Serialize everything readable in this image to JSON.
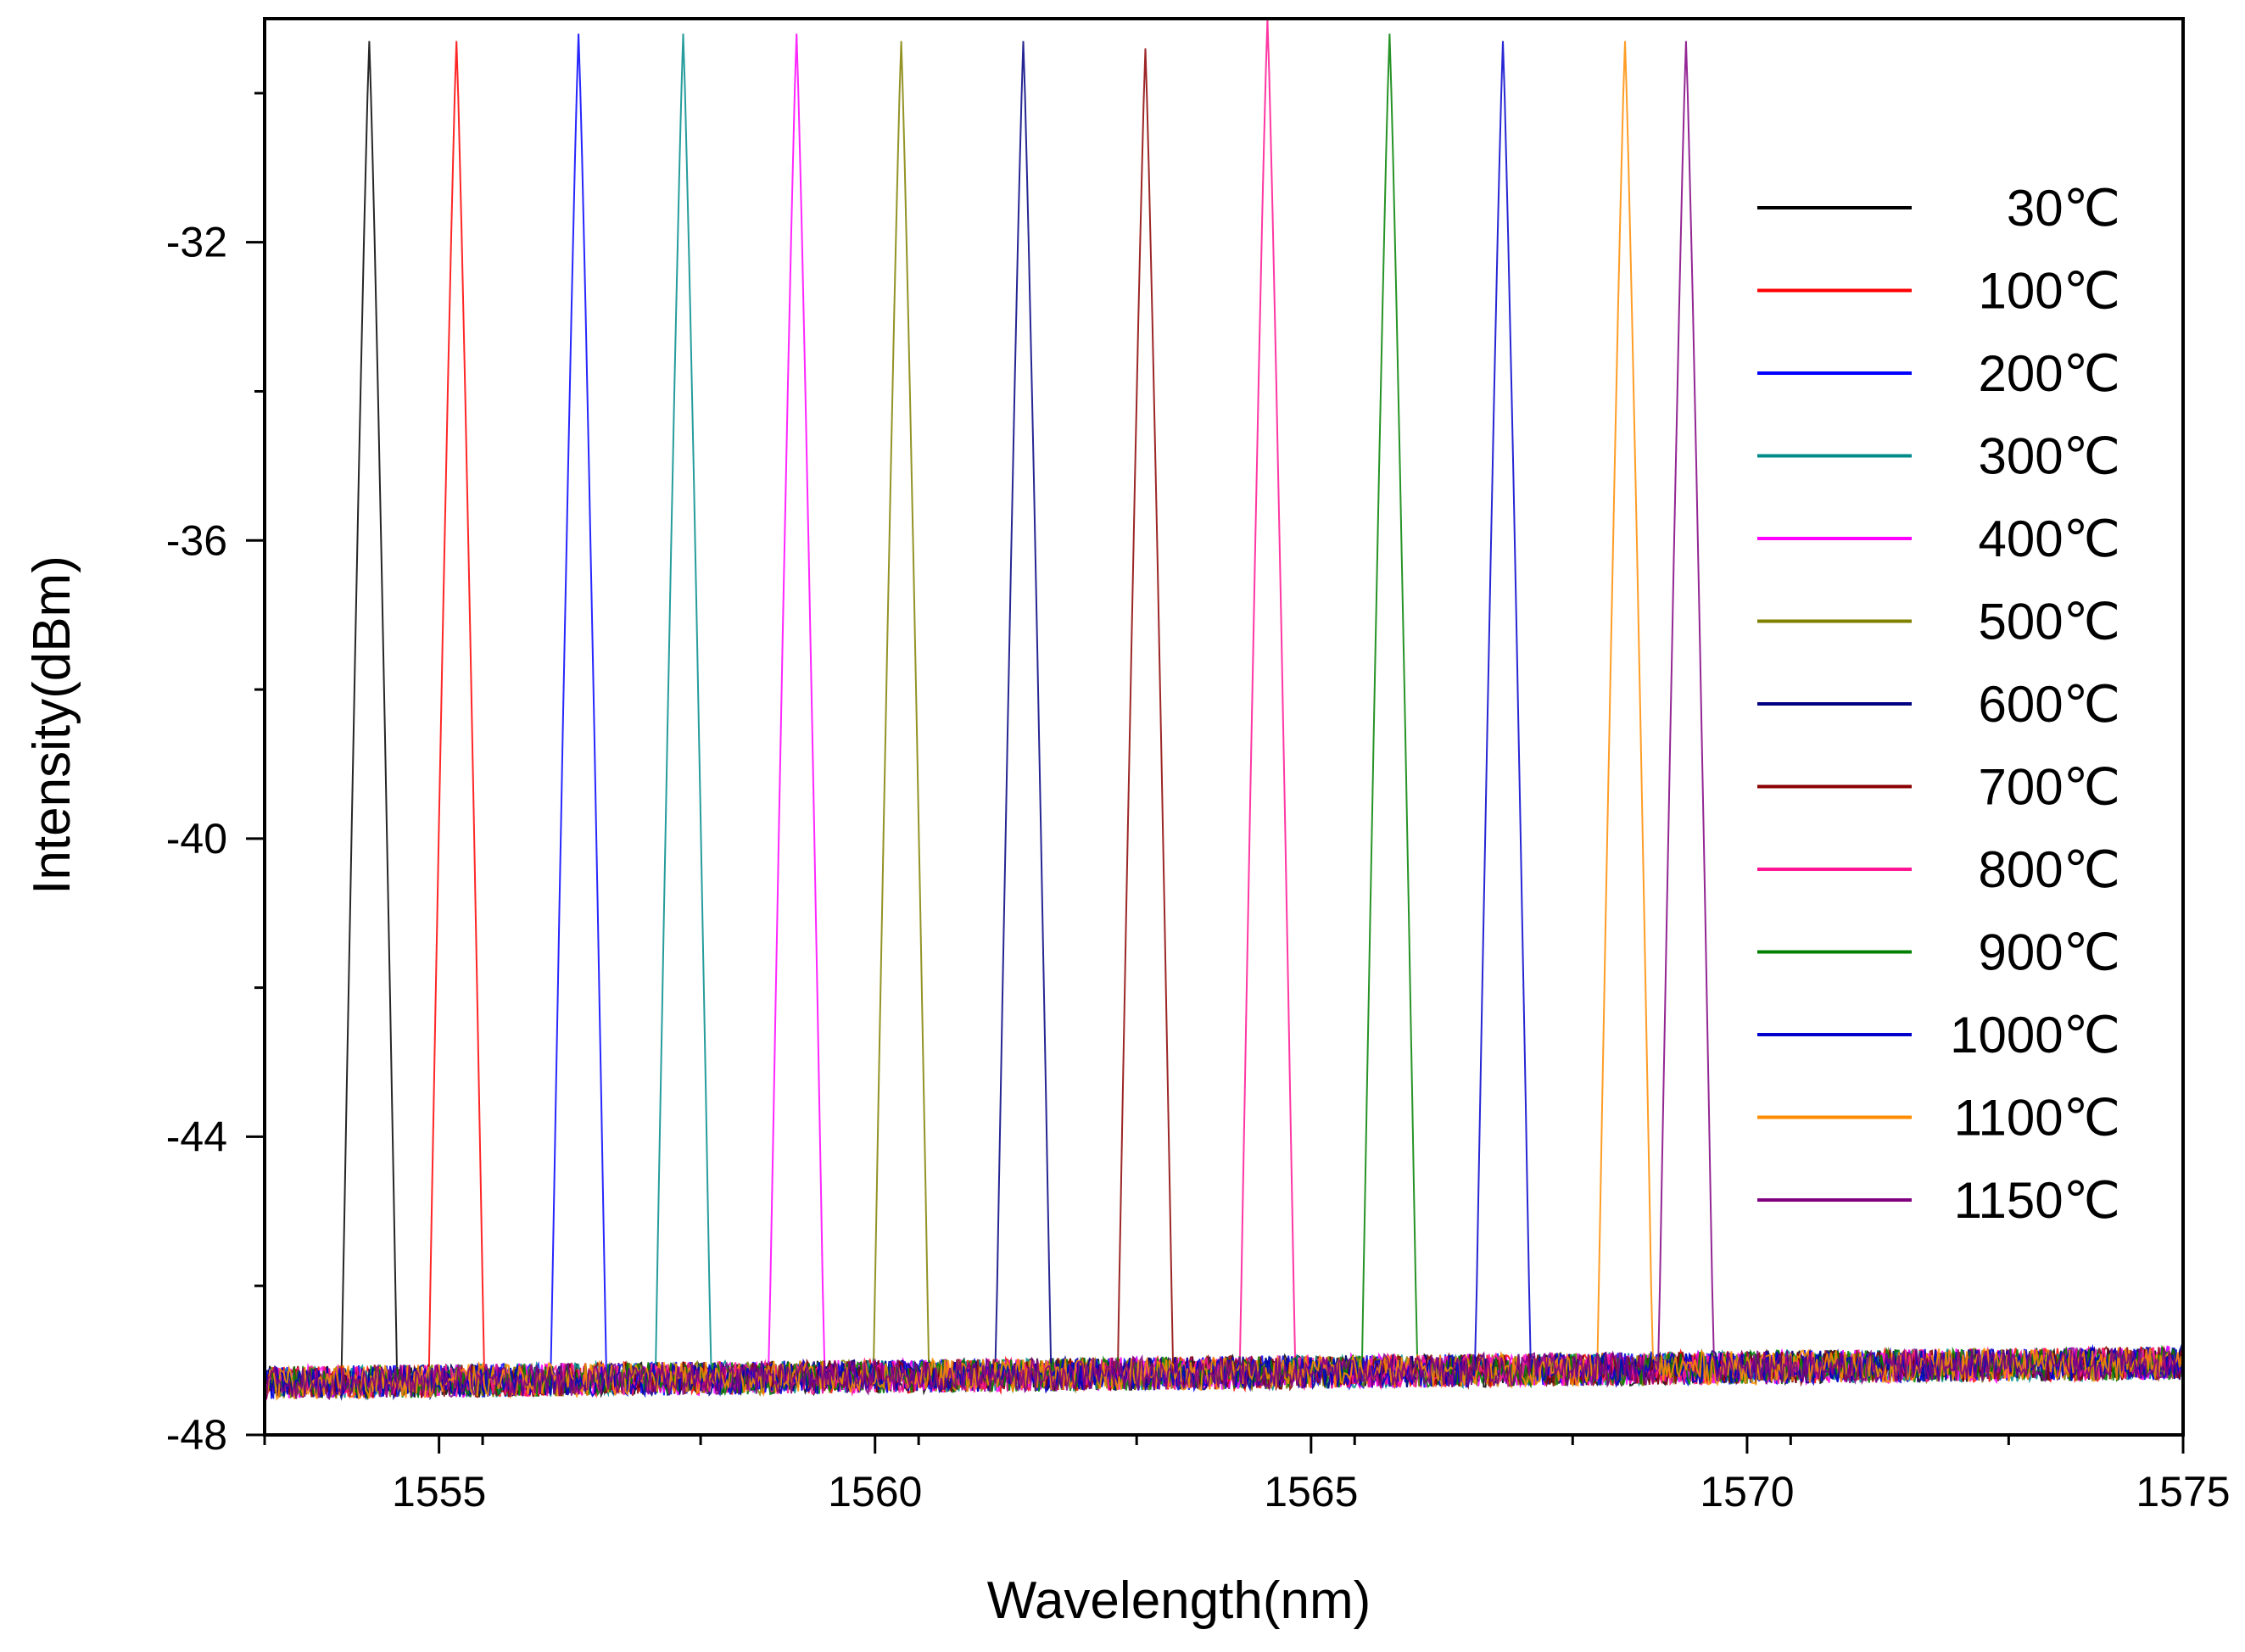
{
  "chart_data": {
    "type": "line",
    "title": "",
    "xlabel": "Wavelength(nm)",
    "ylabel": "Intensity(dBm)",
    "xlim": [
      1553,
      1575
    ],
    "ylim": [
      -48,
      -29
    ],
    "xticks": [
      1555,
      1560,
      1565,
      1570,
      1575
    ],
    "xtick_labels": [
      "1555",
      "1560",
      "1565",
      "1570",
      "1575"
    ],
    "yticks": [
      -32,
      -36,
      -40,
      -44,
      -48
    ],
    "ytick_labels": [
      "-32",
      "-36",
      "-40",
      "-44",
      "-48"
    ],
    "grid": false,
    "legend_position": "top-right",
    "baseline_dbm": -47.3,
    "series": [
      {
        "name": "30℃",
        "color": "#000000",
        "peak_nm": 1554.2,
        "peak_dbm": -29.3
      },
      {
        "name": "100℃",
        "color": "#ff0000",
        "peak_nm": 1555.2,
        "peak_dbm": -29.3
      },
      {
        "name": "200℃",
        "color": "#0000ff",
        "peak_nm": 1556.6,
        "peak_dbm": -29.2
      },
      {
        "name": "300℃",
        "color": "#008b8b",
        "peak_nm": 1557.8,
        "peak_dbm": -29.2
      },
      {
        "name": "400℃",
        "color": "#ff00ff",
        "peak_nm": 1559.1,
        "peak_dbm": -29.2
      },
      {
        "name": "500℃",
        "color": "#808000",
        "peak_nm": 1560.3,
        "peak_dbm": -29.3
      },
      {
        "name": "600℃",
        "color": "#000080",
        "peak_nm": 1561.7,
        "peak_dbm": -29.3
      },
      {
        "name": "700℃",
        "color": "#8b0000",
        "peak_nm": 1563.1,
        "peak_dbm": -29.4
      },
      {
        "name": "800℃",
        "color": "#ff1493",
        "peak_nm": 1564.5,
        "peak_dbm": -29.0
      },
      {
        "name": "900℃",
        "color": "#008000",
        "peak_nm": 1565.9,
        "peak_dbm": -29.2
      },
      {
        "name": "1000℃",
        "color": "#0000cd",
        "peak_nm": 1567.2,
        "peak_dbm": -29.3
      },
      {
        "name": "1100℃",
        "color": "#ff8c00",
        "peak_nm": 1568.6,
        "peak_dbm": -29.3
      },
      {
        "name": "1150℃",
        "color": "#800080",
        "peak_nm": 1569.3,
        "peak_dbm": -29.3
      }
    ],
    "series_1100_extra_line_color": "#000000"
  }
}
